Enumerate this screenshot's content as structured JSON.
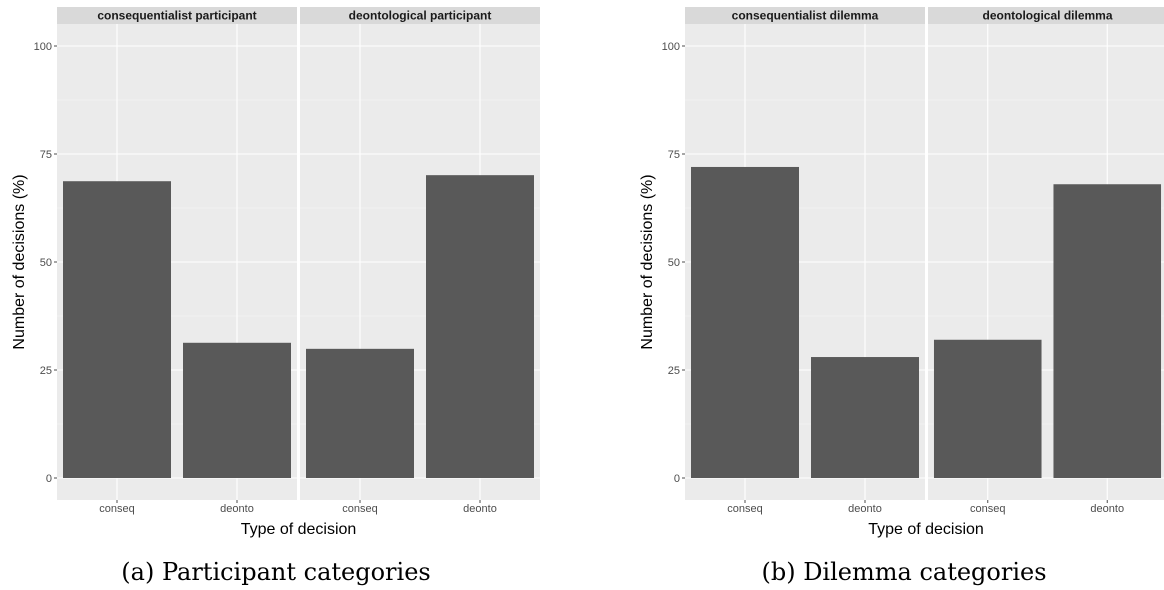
{
  "chart_data": [
    {
      "type": "bar",
      "caption": "(a) Participant categories",
      "xlabel": "Type of decision",
      "ylabel": "Number of decisions (%)",
      "ylim": [
        0,
        100
      ],
      "yticks": [
        0,
        25,
        50,
        75,
        100
      ],
      "categories": [
        "conseq",
        "deonto"
      ],
      "grid": true,
      "bar_color": "#595959",
      "facets": [
        {
          "label": "consequentialist participant",
          "values": [
            68.7,
            31.3
          ]
        },
        {
          "label": "deontological participant",
          "values": [
            29.9,
            70.1
          ]
        }
      ]
    },
    {
      "type": "bar",
      "caption": "(b) Dilemma categories",
      "xlabel": "Type of decision",
      "ylabel": "Number of decisions (%)",
      "ylim": [
        0,
        100
      ],
      "yticks": [
        0,
        25,
        50,
        75,
        100
      ],
      "categories": [
        "conseq",
        "deonto"
      ],
      "grid": true,
      "bar_color": "#595959",
      "facets": [
        {
          "label": "consequentialist dilemma",
          "values": [
            72.0,
            28.0
          ]
        },
        {
          "label": "deontological dilemma",
          "values": [
            32.0,
            68.0
          ]
        }
      ]
    }
  ]
}
